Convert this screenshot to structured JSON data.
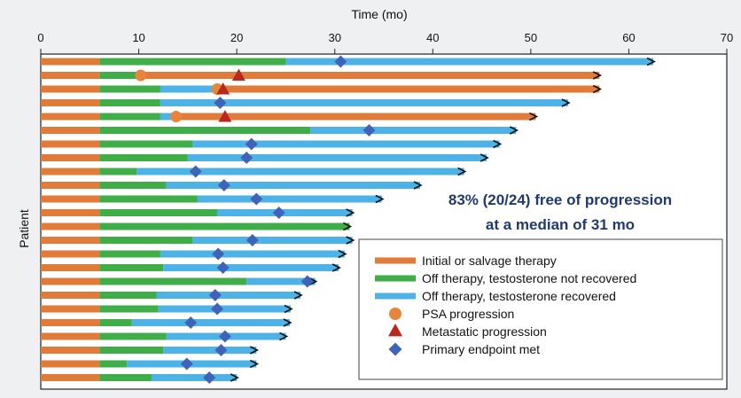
{
  "chart_data": {
    "type": "swimmer",
    "xlabel": "Time (mo)",
    "ylabel": "Patient",
    "xlim": [
      0,
      70
    ],
    "xticks": [
      0,
      10,
      20,
      30,
      40,
      50,
      60,
      70
    ],
    "annotation": [
      "83% (20/24) free of progression",
      "at a median of 31 mo"
    ],
    "legend_position": "bottom-right",
    "colors": {
      "therapy": "#e07b39",
      "off_not_recovered": "#3fae49",
      "off_recovered": "#4db3e6",
      "psa": "#e8853a",
      "metastatic": "#b52a1c",
      "endpoint": "#3f63b8"
    },
    "legend": [
      {
        "label": "Initial or salvage therapy",
        "kind": "bar",
        "color_key": "therapy"
      },
      {
        "label": "Off therapy, testosterone not recovered",
        "kind": "bar",
        "color_key": "off_not_recovered"
      },
      {
        "label": "Off therapy, testosterone recovered",
        "kind": "bar",
        "color_key": "off_recovered"
      },
      {
        "label": "PSA progression",
        "kind": "circle",
        "color_key": "psa"
      },
      {
        "label": "Metastatic progression",
        "kind": "triangle",
        "color_key": "metastatic"
      },
      {
        "label": "Primary endpoint met",
        "kind": "diamond",
        "color_key": "endpoint"
      }
    ],
    "patients": [
      {
        "segments": [
          {
            "type": "therapy",
            "start": 0,
            "end": 6
          },
          {
            "type": "off_not_recovered",
            "start": 6,
            "end": 25
          },
          {
            "type": "off_recovered",
            "start": 25,
            "end": 62.5
          }
        ],
        "arrow": true,
        "endpoint": 30.6
      },
      {
        "segments": [
          {
            "type": "therapy",
            "start": 0,
            "end": 6
          },
          {
            "type": "off_not_recovered",
            "start": 6,
            "end": 10.2
          },
          {
            "type": "therapy",
            "start": 10.2,
            "end": 57
          }
        ],
        "arrow": true,
        "psa": 10.2,
        "metastatic": 20.2
      },
      {
        "segments": [
          {
            "type": "therapy",
            "start": 0,
            "end": 6
          },
          {
            "type": "off_not_recovered",
            "start": 6,
            "end": 12.2
          },
          {
            "type": "off_recovered",
            "start": 12.2,
            "end": 18
          },
          {
            "type": "therapy",
            "start": 18,
            "end": 57
          }
        ],
        "arrow": true,
        "psa": 18,
        "metastatic": 18.6
      },
      {
        "segments": [
          {
            "type": "therapy",
            "start": 0,
            "end": 6
          },
          {
            "type": "off_not_recovered",
            "start": 6,
            "end": 12.2
          },
          {
            "type": "off_recovered",
            "start": 12.2,
            "end": 53.8
          }
        ],
        "arrow": true,
        "endpoint": 18.3
      },
      {
        "segments": [
          {
            "type": "therapy",
            "start": 0,
            "end": 6
          },
          {
            "type": "off_not_recovered",
            "start": 6,
            "end": 12.2
          },
          {
            "type": "off_recovered",
            "start": 12.2,
            "end": 13.8
          },
          {
            "type": "therapy",
            "start": 13.8,
            "end": 50.5
          }
        ],
        "arrow": true,
        "psa": 13.8,
        "metastatic": 18.8
      },
      {
        "segments": [
          {
            "type": "therapy",
            "start": 0,
            "end": 6
          },
          {
            "type": "off_not_recovered",
            "start": 6,
            "end": 27.5
          },
          {
            "type": "off_recovered",
            "start": 27.5,
            "end": 48.5
          }
        ],
        "arrow": true,
        "endpoint": 33.5
      },
      {
        "segments": [
          {
            "type": "therapy",
            "start": 0,
            "end": 6
          },
          {
            "type": "off_not_recovered",
            "start": 6,
            "end": 15.5
          },
          {
            "type": "off_recovered",
            "start": 15.5,
            "end": 46.8
          }
        ],
        "arrow": true,
        "endpoint": 21.5
      },
      {
        "segments": [
          {
            "type": "therapy",
            "start": 0,
            "end": 6
          },
          {
            "type": "off_not_recovered",
            "start": 6,
            "end": 15
          },
          {
            "type": "off_recovered",
            "start": 15,
            "end": 45.5
          }
        ],
        "arrow": true,
        "endpoint": 21
      },
      {
        "segments": [
          {
            "type": "therapy",
            "start": 0,
            "end": 6
          },
          {
            "type": "off_not_recovered",
            "start": 6,
            "end": 9.8
          },
          {
            "type": "off_recovered",
            "start": 9.8,
            "end": 43.2
          }
        ],
        "arrow": true,
        "endpoint": 15.8
      },
      {
        "segments": [
          {
            "type": "therapy",
            "start": 0,
            "end": 6
          },
          {
            "type": "off_not_recovered",
            "start": 6,
            "end": 12.8
          },
          {
            "type": "off_recovered",
            "start": 12.8,
            "end": 38.7
          }
        ],
        "arrow": true,
        "endpoint": 18.7
      },
      {
        "segments": [
          {
            "type": "therapy",
            "start": 0,
            "end": 6
          },
          {
            "type": "off_not_recovered",
            "start": 6,
            "end": 16
          },
          {
            "type": "off_recovered",
            "start": 16,
            "end": 34.8
          }
        ],
        "arrow": true,
        "endpoint": 22
      },
      {
        "segments": [
          {
            "type": "therapy",
            "start": 0,
            "end": 6
          },
          {
            "type": "off_not_recovered",
            "start": 6,
            "end": 18
          },
          {
            "type": "off_recovered",
            "start": 18,
            "end": 31.8
          }
        ],
        "arrow": true,
        "endpoint": 24.3
      },
      {
        "segments": [
          {
            "type": "therapy",
            "start": 0,
            "end": 6
          },
          {
            "type": "off_not_recovered",
            "start": 6,
            "end": 31.5
          }
        ],
        "arrow": true
      },
      {
        "segments": [
          {
            "type": "therapy",
            "start": 0,
            "end": 6
          },
          {
            "type": "off_not_recovered",
            "start": 6,
            "end": 15.5
          },
          {
            "type": "off_recovered",
            "start": 15.5,
            "end": 31.8
          }
        ],
        "arrow": true,
        "endpoint": 21.6
      },
      {
        "segments": [
          {
            "type": "therapy",
            "start": 0,
            "end": 6
          },
          {
            "type": "off_not_recovered",
            "start": 6,
            "end": 12.2
          },
          {
            "type": "off_recovered",
            "start": 12.2,
            "end": 31
          }
        ],
        "arrow": true,
        "endpoint": 18.1
      },
      {
        "segments": [
          {
            "type": "therapy",
            "start": 0,
            "end": 6
          },
          {
            "type": "off_not_recovered",
            "start": 6,
            "end": 12.5
          },
          {
            "type": "off_recovered",
            "start": 12.5,
            "end": 30.4
          }
        ],
        "arrow": true,
        "endpoint": 18.6
      },
      {
        "segments": [
          {
            "type": "therapy",
            "start": 0,
            "end": 6
          },
          {
            "type": "off_not_recovered",
            "start": 6,
            "end": 21
          },
          {
            "type": "off_recovered",
            "start": 21,
            "end": 28
          }
        ],
        "arrow": true,
        "endpoint": 27.2
      },
      {
        "segments": [
          {
            "type": "therapy",
            "start": 0,
            "end": 6
          },
          {
            "type": "off_not_recovered",
            "start": 6,
            "end": 11.8
          },
          {
            "type": "off_recovered",
            "start": 11.8,
            "end": 26.5
          }
        ],
        "arrow": true,
        "endpoint": 17.8
      },
      {
        "segments": [
          {
            "type": "therapy",
            "start": 0,
            "end": 6
          },
          {
            "type": "off_not_recovered",
            "start": 6,
            "end": 12
          },
          {
            "type": "off_recovered",
            "start": 12,
            "end": 25.5
          }
        ],
        "arrow": true,
        "endpoint": 18
      },
      {
        "segments": [
          {
            "type": "therapy",
            "start": 0,
            "end": 6
          },
          {
            "type": "off_not_recovered",
            "start": 6,
            "end": 9.3
          },
          {
            "type": "off_recovered",
            "start": 9.3,
            "end": 25.4
          }
        ],
        "arrow": true,
        "endpoint": 15.3
      },
      {
        "segments": [
          {
            "type": "therapy",
            "start": 0,
            "end": 6
          },
          {
            "type": "off_not_recovered",
            "start": 6,
            "end": 12.8
          },
          {
            "type": "off_recovered",
            "start": 12.8,
            "end": 25
          }
        ],
        "arrow": true,
        "endpoint": 18.8
      },
      {
        "segments": [
          {
            "type": "therapy",
            "start": 0,
            "end": 6
          },
          {
            "type": "off_not_recovered",
            "start": 6,
            "end": 12.5
          },
          {
            "type": "off_recovered",
            "start": 12.5,
            "end": 22
          }
        ],
        "arrow": true,
        "endpoint": 18.4
      },
      {
        "segments": [
          {
            "type": "therapy",
            "start": 0,
            "end": 6
          },
          {
            "type": "off_not_recovered",
            "start": 6,
            "end": 8.8
          },
          {
            "type": "off_recovered",
            "start": 8.8,
            "end": 22
          }
        ],
        "arrow": true,
        "endpoint": 14.9
      },
      {
        "segments": [
          {
            "type": "therapy",
            "start": 0,
            "end": 6
          },
          {
            "type": "off_not_recovered",
            "start": 6,
            "end": 11.3
          },
          {
            "type": "off_recovered",
            "start": 11.3,
            "end": 20
          }
        ],
        "arrow": true,
        "endpoint": 17.2
      }
    ]
  }
}
